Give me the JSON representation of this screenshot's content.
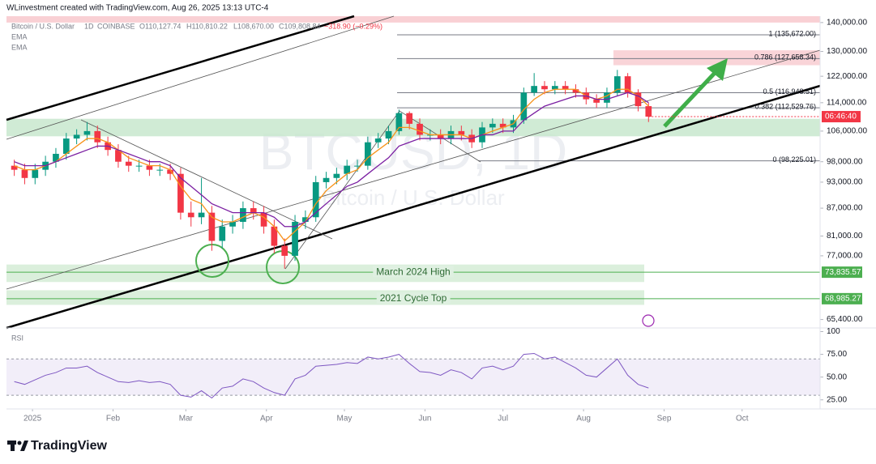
{
  "header": "WLinvestment created with TradingView.com, Aug 26, 2025 13:13 UTC-4",
  "brand": "TradingView",
  "chart_data": {
    "type": "candlestick",
    "title": "Bitcoin / U.S. Dollar",
    "interval": "1D",
    "exchange": "COINBASE",
    "legend_values": [
      "O110,127.74",
      "H110,810.22",
      "L108,670.00",
      "C109,808.84",
      "−318.90 (−0.29%)"
    ],
    "watermark": "BTCUSD, 1D",
    "countdown": "06:46:40",
    "up_color": "#089981",
    "down_color": "#f23645",
    "log_scale": true,
    "opens": [
      97000,
      96000,
      94000,
      96000,
      98000,
      100000,
      104000,
      105000,
      106000,
      103000,
      101000,
      98000,
      97000,
      97000,
      96000,
      96000,
      95000,
      86000,
      85000,
      86000,
      80000,
      83000,
      84000,
      87000,
      86000,
      83000,
      79000,
      77000,
      84000,
      85000,
      93000,
      94000,
      95000,
      97000,
      97000,
      103000,
      104000,
      106000,
      111000,
      108000,
      105000,
      105000,
      104000,
      106000,
      105000,
      103000,
      107000,
      108000,
      107000,
      109000,
      117000,
      119000,
      118000,
      119000,
      118000,
      117000,
      115000,
      114000,
      117000,
      122000,
      117000,
      113000
    ],
    "highs": [
      98500,
      97500,
      97500,
      99500,
      101500,
      105500,
      106500,
      108500,
      107500,
      104500,
      102500,
      99500,
      98500,
      98500,
      97500,
      97500,
      96500,
      88500,
      94000,
      87500,
      84500,
      85500,
      88500,
      88500,
      87500,
      84500,
      80500,
      85500,
      86500,
      94500,
      95500,
      96500,
      98500,
      98500,
      104500,
      105500,
      107500,
      112000,
      111500,
      109500,
      106500,
      106500,
      107500,
      107500,
      106500,
      108500,
      109500,
      109500,
      110500,
      118500,
      123000,
      120500,
      120500,
      120500,
      119500,
      118500,
      116500,
      118500,
      124000,
      123000,
      118000,
      114000
    ],
    "lows": [
      94500,
      92500,
      92500,
      94500,
      96500,
      98500,
      102500,
      103500,
      101500,
      99500,
      96500,
      95500,
      95500,
      94500,
      94500,
      93500,
      84500,
      83000,
      83500,
      78000,
      78500,
      81500,
      82500,
      84500,
      81500,
      77500,
      74500,
      76000,
      82500,
      84000,
      91500,
      92500,
      93500,
      95500,
      96000,
      101500,
      102500,
      105000,
      106500,
      103500,
      103500,
      102500,
      102500,
      103500,
      101500,
      101500,
      105500,
      105500,
      105500,
      108000,
      116000,
      116500,
      116500,
      116500,
      115500,
      113500,
      112500,
      112500,
      116000,
      115500,
      111500,
      108500
    ],
    "closes": [
      96000,
      94000,
      96000,
      98000,
      100000,
      104000,
      105000,
      106000,
      103000,
      101000,
      98000,
      97000,
      97000,
      96000,
      96000,
      95000,
      86000,
      85000,
      86000,
      80000,
      83000,
      84000,
      87000,
      86000,
      83000,
      79000,
      77000,
      84000,
      85000,
      93000,
      94000,
      95000,
      97000,
      97000,
      103000,
      104000,
      106000,
      111000,
      108000,
      105000,
      105000,
      104000,
      106000,
      105000,
      103000,
      107000,
      108000,
      107000,
      109000,
      117000,
      119000,
      118000,
      119000,
      118000,
      117000,
      115000,
      114000,
      117000,
      122000,
      117000,
      113000,
      110000
    ],
    "ema": [
      {
        "name": "EMA",
        "color": "#f7931a",
        "values": [
          97000,
          96000,
          96000,
          97000,
          98000,
          100000,
          102000,
          104000,
          104000,
          103000,
          101000,
          99000,
          98000,
          97000,
          97000,
          96000,
          92000,
          89000,
          88000,
          85000,
          84000,
          84000,
          85000,
          86000,
          85000,
          83000,
          80000,
          82000,
          84000,
          88000,
          91000,
          93000,
          95000,
          96000,
          99000,
          101000,
          103000,
          107000,
          107000,
          106000,
          105000,
          105000,
          105000,
          105000,
          104000,
          105000,
          106000,
          107000,
          108000,
          112000,
          115000,
          117000,
          118000,
          118000,
          118000,
          116000,
          115000,
          116000,
          118000,
          118000,
          116000,
          113000
        ]
      },
      {
        "name": "EMA",
        "color": "#7b1fa2",
        "values": [
          98000,
          97000,
          97000,
          97000,
          98000,
          99000,
          100000,
          101000,
          102000,
          102000,
          101000,
          100000,
          99000,
          98000,
          98000,
          97000,
          94000,
          92000,
          90000,
          88000,
          87000,
          86000,
          86000,
          86000,
          86000,
          85000,
          83000,
          83000,
          84000,
          86000,
          88000,
          90000,
          92000,
          93000,
          95000,
          97000,
          99000,
          102000,
          103000,
          104000,
          104000,
          104000,
          104000,
          104000,
          104000,
          105000,
          105000,
          106000,
          106000,
          109000,
          111000,
          113000,
          114000,
          115000,
          116000,
          116000,
          115000,
          115000,
          116000,
          117000,
          116000,
          114000
        ]
      }
    ],
    "xlim": [
      -0.75,
      77.5
    ],
    "xticks": [
      {
        "value": 1.75,
        "label": "2025"
      },
      {
        "value": 9.5,
        "label": "Feb"
      },
      {
        "value": 16.5,
        "label": "Mar"
      },
      {
        "value": 24.25,
        "label": "Apr"
      },
      {
        "value": 31.75,
        "label": "May"
      },
      {
        "value": 39.5,
        "label": "Jun"
      },
      {
        "value": 47,
        "label": "Jul"
      },
      {
        "value": 54.75,
        "label": "Aug"
      },
      {
        "value": 62.5,
        "label": "Sep"
      },
      {
        "value": 70,
        "label": "Oct"
      }
    ],
    "ylim": [
      64000,
      142300
    ],
    "yticks": [
      {
        "value": 140000,
        "label": "140,000.00"
      },
      {
        "value": 130000,
        "label": "130,000.00"
      },
      {
        "value": 122000,
        "label": "122,000.00"
      },
      {
        "value": 114000,
        "label": "114,000.00"
      },
      {
        "value": 106000,
        "label": "106,000.00"
      },
      {
        "value": 98000,
        "label": "98,000.00"
      },
      {
        "value": 93000,
        "label": "93,000.00"
      },
      {
        "value": 87000,
        "label": "87,000.00"
      },
      {
        "value": 81000,
        "label": "81,000.00"
      },
      {
        "value": 77000,
        "label": "77,000.00"
      },
      {
        "value": 65400,
        "label": "65,400.00"
      }
    ],
    "fib_levels": [
      {
        "value": 135672,
        "label": "1 (135,672.00)"
      },
      {
        "value": 127658.34,
        "label": "0.786 (127,658.34)"
      },
      {
        "value": 116948.51,
        "label": "0.5 (116,948.51)"
      },
      {
        "value": 112529.76,
        "label": "0.382 (112,529.76)"
      },
      {
        "value": 98225.01,
        "label": "0 (98,225.01)"
      }
    ],
    "zones": [
      {
        "from": 140000,
        "to": 142300,
        "color": "#f8c8cc"
      },
      {
        "from": 125500,
        "to": 130400,
        "color": "#f8cdd1"
      },
      {
        "from": 104600,
        "to": 109400,
        "color": "#c8e8ce"
      }
    ],
    "support_levels": [
      {
        "name": "March 2024 High",
        "level": {
          "value": 73835.57,
          "label": "73,835.57"
        },
        "zone": [
          72000,
          75300
        ],
        "color": "#4caf50"
      },
      {
        "name": "2021 Cycle Top",
        "level": {
          "value": 68985.27,
          "label": "68,985.27"
        },
        "zone": [
          67900,
          70500
        ],
        "color": "#4caf50"
      }
    ],
    "rsi": {
      "name": "RSI",
      "color": "#7e57c2",
      "band": [
        30,
        70
      ],
      "values": [
        45,
        42,
        47,
        52,
        55,
        60,
        60,
        62,
        55,
        50,
        45,
        44,
        46,
        44,
        45,
        42,
        30,
        28,
        35,
        27,
        38,
        40,
        48,
        45,
        38,
        33,
        30,
        48,
        52,
        62,
        63,
        64,
        66,
        65,
        72,
        70,
        72,
        75,
        65,
        56,
        55,
        52,
        58,
        55,
        48,
        60,
        62,
        58,
        62,
        75,
        76,
        70,
        72,
        66,
        60,
        52,
        50,
        60,
        70,
        52,
        42,
        38
      ],
      "ylim": [
        15,
        104
      ],
      "yticks": [
        100,
        {
          "value": 75,
          "label": "75.00"
        },
        {
          "value": 50,
          "label": "50.00"
        },
        {
          "value": 25,
          "label": "25.00"
        }
      ]
    }
  }
}
